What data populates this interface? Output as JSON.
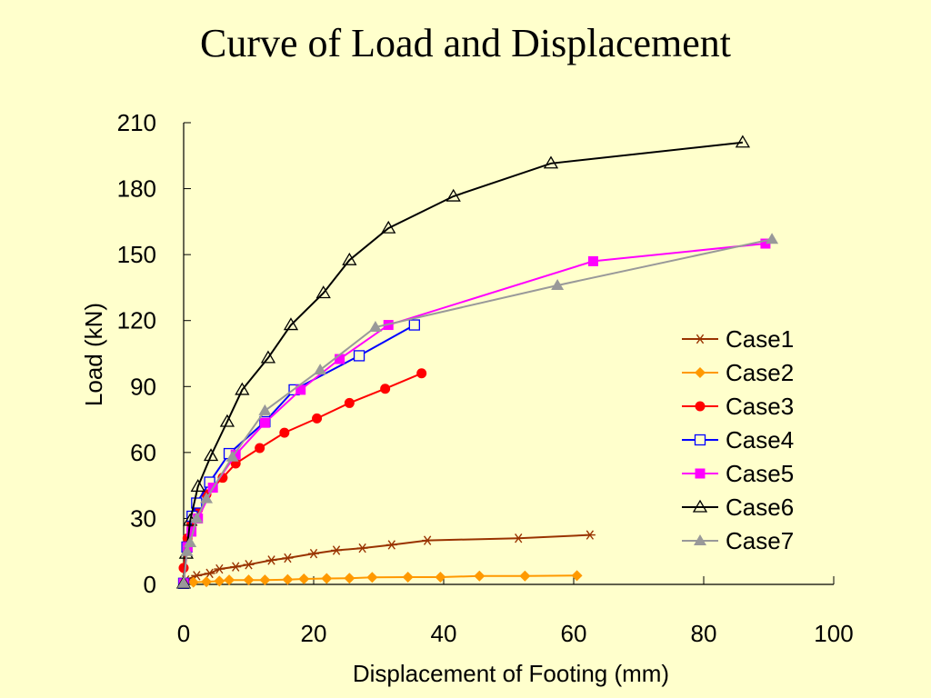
{
  "title": "Curve of Load and Displacement",
  "chart_data": {
    "type": "line",
    "title": "Curve of Load and Displacement",
    "xlabel": "Displacement of Footing (mm)",
    "ylabel": "Load (kN)",
    "xlim": [
      0,
      100
    ],
    "ylim": [
      0,
      210
    ],
    "xticks": [
      0,
      20,
      40,
      60,
      80,
      100
    ],
    "yticks": [
      0,
      30,
      60,
      90,
      120,
      150,
      180,
      210
    ],
    "grid": false,
    "legend_position": "right",
    "series": [
      {
        "name": "Case1",
        "color": "#993300",
        "marker": "star",
        "x": [
          0.3,
          2,
          4,
          5.5,
          8,
          10,
          13.5,
          16,
          20,
          23.5,
          27.5,
          32,
          37.5,
          51.5,
          62.5
        ],
        "y": [
          2,
          4,
          5,
          7,
          8,
          9,
          11,
          12,
          14,
          15.5,
          16.5,
          18,
          20,
          21,
          22.5
        ]
      },
      {
        "name": "Case2",
        "color": "#ff9900",
        "marker": "diamond",
        "x": [
          0,
          1.5,
          3.5,
          5.5,
          7,
          10,
          12.5,
          16,
          18.5,
          22,
          25.5,
          29,
          34.5,
          39.5,
          45.5,
          52.5,
          60.5
        ],
        "y": [
          0.5,
          1,
          1.2,
          1.5,
          2,
          2,
          2,
          2.2,
          2.5,
          2.7,
          2.8,
          3.2,
          3.3,
          3.3,
          3.8,
          3.8,
          4
        ]
      },
      {
        "name": "Case3",
        "color": "#ff0000",
        "marker": "circle",
        "x": [
          0,
          0.6,
          1.2,
          2.2,
          3.5,
          6,
          8,
          11.7,
          15.5,
          20.5,
          25.5,
          31,
          36.6
        ],
        "y": [
          7.5,
          21,
          27.5,
          34,
          41,
          48.5,
          55,
          62,
          69,
          75.5,
          82.5,
          89,
          96
        ]
      },
      {
        "name": "Case4",
        "color": "#0000ff",
        "marker": "square-open",
        "x": [
          0,
          0.5,
          1.3,
          2,
          4,
          7,
          12.5,
          17,
          27,
          35.5
        ],
        "y": [
          0.5,
          17,
          31,
          37,
          46.5,
          59.5,
          74,
          88.5,
          104,
          118
        ]
      },
      {
        "name": "Case5",
        "color": "#ff00ff",
        "marker": "square",
        "x": [
          0,
          0.6,
          1.2,
          2.2,
          4.5,
          8,
          12.5,
          18,
          24,
          31.5,
          63,
          89.5
        ],
        "y": [
          0.5,
          17,
          24,
          30,
          44,
          59,
          73.5,
          88.5,
          102.5,
          118,
          147,
          155
        ]
      },
      {
        "name": "Case6",
        "color": "#000000",
        "marker": "triangle-open",
        "x": [
          0,
          0.4,
          1,
          2.2,
          4.2,
          6.7,
          9,
          13,
          16.5,
          21.5,
          25.5,
          31.5,
          41.5,
          56.5,
          86
        ],
        "y": [
          0.5,
          14,
          29,
          44.5,
          58.5,
          74,
          88.5,
          103,
          118,
          132.5,
          147.5,
          162,
          176.5,
          191.5,
          201
        ]
      },
      {
        "name": "Case7",
        "color": "#999999",
        "marker": "triangle",
        "x": [
          0,
          0.5,
          1,
          2,
          3.5,
          7.5,
          12.5,
          21,
          29.5,
          57.5,
          90.5
        ],
        "y": [
          0.5,
          15,
          19,
          30,
          39,
          58,
          79,
          97.5,
          117,
          136,
          157
        ]
      }
    ]
  }
}
